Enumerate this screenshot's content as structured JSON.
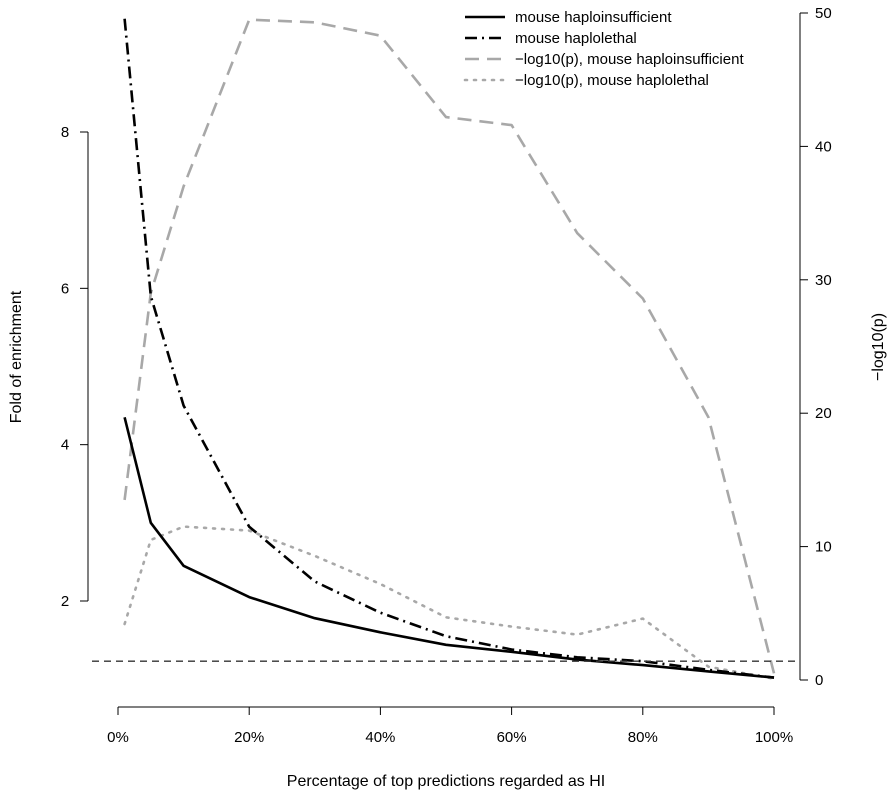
{
  "chart_data": {
    "type": "line",
    "title": "",
    "xlabel": "Percentage of top predictions regarded as HI",
    "ylabel_left": "Fold of enrichment",
    "ylabel_right": "−log10(p)",
    "x_ticks": [
      {
        "value": 0,
        "label": "0%"
      },
      {
        "value": 20,
        "label": "20%"
      },
      {
        "value": 40,
        "label": "40%"
      },
      {
        "value": 60,
        "label": "60%"
      },
      {
        "value": 80,
        "label": "80%"
      },
      {
        "value": 100,
        "label": "100%"
      }
    ],
    "y_left_ticks": [
      {
        "value": 2,
        "label": "2"
      },
      {
        "value": 4,
        "label": "4"
      },
      {
        "value": 6,
        "label": "6"
      },
      {
        "value": 8,
        "label": "8"
      }
    ],
    "y_right_ticks": [
      {
        "value": 0,
        "label": "0"
      },
      {
        "value": 10,
        "label": "10"
      },
      {
        "value": 20,
        "label": "20"
      },
      {
        "value": 30,
        "label": "30"
      },
      {
        "value": 40,
        "label": "40"
      },
      {
        "value": 50,
        "label": "50"
      }
    ],
    "xlim": [
      0,
      100
    ],
    "ylim_left": [
      1,
      9.6
    ],
    "ylim_right": [
      0,
      50
    ],
    "grid": false,
    "legend_position": "top-right",
    "reference_line": {
      "axis": "left",
      "y": 1.23,
      "color": "#333333",
      "style": "dashed"
    },
    "series": [
      {
        "name": "mouse haploinsufficient",
        "axis": "left",
        "color": "#000000",
        "style": "solid",
        "x": [
          1,
          5,
          10,
          20,
          30,
          40,
          50,
          60,
          70,
          80,
          90,
          100
        ],
        "y": [
          4.35,
          3.0,
          2.45,
          2.05,
          1.78,
          1.6,
          1.44,
          1.35,
          1.25,
          1.18,
          1.1,
          1.02
        ]
      },
      {
        "name": "mouse haplolethal",
        "axis": "left",
        "color": "#000000",
        "style": "dashdot",
        "x": [
          1,
          5,
          10,
          20,
          30,
          40,
          50,
          60,
          70,
          80,
          90,
          100
        ],
        "y": [
          9.45,
          5.9,
          4.5,
          2.95,
          2.25,
          1.85,
          1.55,
          1.38,
          1.28,
          1.23,
          1.12,
          1.02
        ]
      },
      {
        "name": "−log10(p), mouse haploinsufficient",
        "axis": "right",
        "color": "#a8a8a8",
        "style": "dashed",
        "x": [
          1,
          5,
          10,
          20,
          30,
          40,
          50,
          60,
          70,
          80,
          90,
          100
        ],
        "y": [
          13.5,
          29,
          37,
          49.5,
          49.3,
          48.3,
          42.2,
          41.6,
          33.5,
          28.6,
          19.7,
          0.5
        ]
      },
      {
        "name": "−log10(p), mouse haplolethal",
        "axis": "right",
        "color": "#a8a8a8",
        "style": "dotted",
        "x": [
          1,
          5,
          10,
          20,
          30,
          40,
          50,
          60,
          70,
          80,
          90,
          100
        ],
        "y": [
          4.2,
          10.5,
          11.5,
          11.2,
          9.3,
          7.2,
          4.7,
          4.0,
          3.4,
          4.6,
          1.0,
          0.1
        ]
      }
    ]
  }
}
